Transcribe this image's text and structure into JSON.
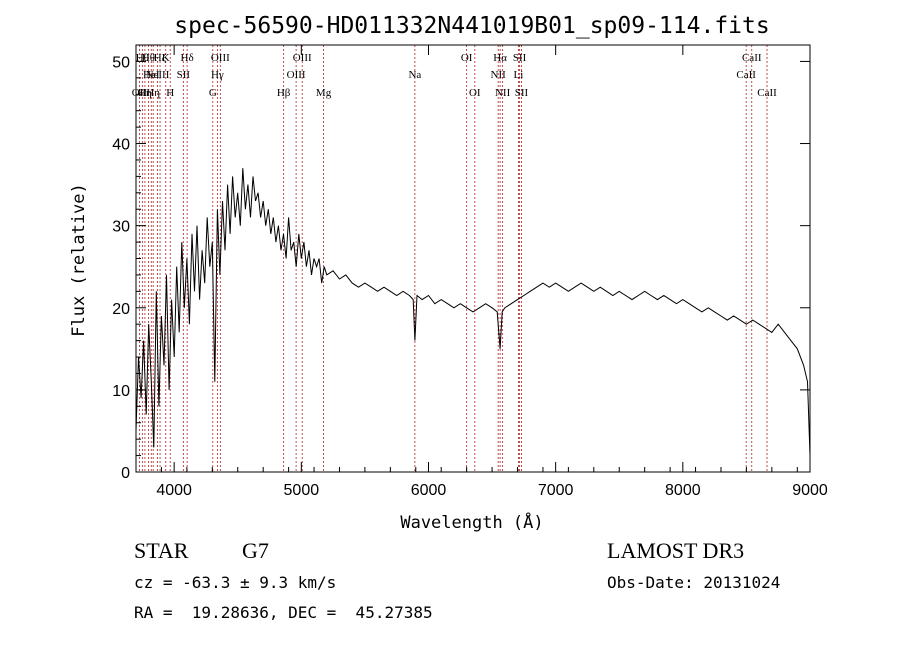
{
  "colors": {
    "axis": "#000000",
    "spectrum": "#000000",
    "line_marker": "#b22222"
  },
  "chart_data": {
    "type": "line",
    "title": "spec-56590-HD011332N441019B01_sp09-114.fits",
    "xlabel": "Wavelength (Å)",
    "ylabel": "Flux (relative)",
    "xlim": [
      3700,
      9000
    ],
    "ylim": [
      0,
      52
    ],
    "xticks": [
      "4000",
      "5000",
      "6000",
      "7000",
      "8000",
      "9000"
    ],
    "yticks": [
      "0",
      "10",
      "20",
      "30",
      "40",
      "50"
    ],
    "grid": false,
    "series": [
      {
        "x": [
          3700,
          3720,
          3740,
          3760,
          3780,
          3800,
          3820,
          3840,
          3860,
          3880,
          3900,
          3920,
          3940,
          3960,
          3980,
          4000,
          4020,
          4040,
          4060,
          4080,
          4100,
          4120,
          4140,
          4160,
          4180,
          4200,
          4220,
          4240,
          4260,
          4280,
          4300,
          4320,
          4340,
          4360,
          4380,
          4400,
          4420,
          4440,
          4460,
          4480,
          4500,
          4520,
          4540,
          4560,
          4580,
          4600,
          4620,
          4640,
          4660,
          4680,
          4700,
          4720,
          4740,
          4760,
          4780,
          4800,
          4820,
          4840,
          4860,
          4880,
          4900,
          4920,
          4940,
          4960,
          4980,
          5000,
          5020,
          5040,
          5060,
          5080,
          5100,
          5120,
          5140,
          5160,
          5180,
          5200,
          5250,
          5300,
          5350,
          5400,
          5450,
          5500,
          5550,
          5600,
          5650,
          5700,
          5750,
          5800,
          5850,
          5880,
          5893,
          5910,
          5950,
          6000,
          6050,
          6100,
          6150,
          6200,
          6250,
          6300,
          6350,
          6400,
          6450,
          6500,
          6540,
          6563,
          6580,
          6600,
          6650,
          6700,
          6750,
          6800,
          6850,
          6900,
          6950,
          7000,
          7050,
          7100,
          7150,
          7200,
          7250,
          7300,
          7350,
          7400,
          7450,
          7500,
          7550,
          7600,
          7650,
          7700,
          7750,
          7800,
          7850,
          7900,
          7950,
          8000,
          8050,
          8100,
          8150,
          8200,
          8250,
          8300,
          8350,
          8400,
          8450,
          8500,
          8550,
          8600,
          8650,
          8700,
          8750,
          8800,
          8850,
          8900,
          8950,
          8980,
          9000
        ],
        "y": [
          5,
          14,
          9,
          16,
          7,
          18,
          11,
          3,
          22,
          8,
          19,
          13,
          24,
          10,
          21,
          14,
          25,
          17,
          28,
          20,
          26,
          18,
          29,
          22,
          30,
          21,
          27,
          23,
          31,
          25,
          28,
          11,
          32,
          24,
          33,
          27,
          35,
          29,
          36,
          31,
          34,
          30,
          37,
          32,
          35,
          31,
          36,
          33,
          34,
          31,
          33,
          30,
          32,
          29,
          31,
          28,
          30,
          27,
          29,
          26,
          31,
          27,
          28,
          25,
          29,
          26,
          28,
          25,
          27,
          24,
          26,
          25,
          26,
          23,
          25,
          24,
          24.5,
          23.5,
          24,
          23,
          22.5,
          23,
          22.5,
          22,
          22.5,
          22,
          21.5,
          22,
          21.5,
          21,
          16,
          21.5,
          21,
          21.5,
          20.5,
          21,
          20.5,
          20,
          20.5,
          20,
          19.5,
          20,
          20.5,
          20,
          19.5,
          15,
          19.5,
          20,
          20.5,
          21,
          21.5,
          22,
          22.5,
          23,
          22.5,
          23,
          22.5,
          22,
          22.5,
          23,
          22.5,
          22,
          22.5,
          22,
          21.5,
          22,
          21.5,
          21,
          21.5,
          22,
          21.5,
          21,
          21.5,
          21,
          20.5,
          21,
          20.5,
          20,
          19.5,
          20,
          19.5,
          19,
          18.5,
          19,
          18.5,
          18,
          18.5,
          18,
          17.5,
          17,
          18,
          17,
          16,
          15,
          13,
          11,
          2
        ]
      }
    ],
    "line_markers": [
      {
        "wave": 3727,
        "label": "OII",
        "row": 2
      },
      {
        "wave": 3750,
        "label": "Hθ",
        "row": 0
      },
      {
        "wave": 3770,
        "label": "Hη",
        "row": 2
      },
      {
        "wave": 3798,
        "label": "Hθ",
        "row": 0
      },
      {
        "wave": 3820,
        "label": "HeI",
        "row": 1
      },
      {
        "wave": 3835,
        "label": "Hη",
        "row": 2
      },
      {
        "wave": 3869,
        "label": "NeIII",
        "row": 1
      },
      {
        "wave": 3889,
        "label": "Hζ",
        "row": 0
      },
      {
        "wave": 3934,
        "label": "K",
        "row": 0
      },
      {
        "wave": 3969,
        "label": "H",
        "row": 2
      },
      {
        "wave": 4072,
        "label": "SII",
        "row": 1
      },
      {
        "wave": 4102,
        "label": "Hδ",
        "row": 0
      },
      {
        "wave": 4304,
        "label": "G",
        "row": 2
      },
      {
        "wave": 4340,
        "label": "Hγ",
        "row": 1
      },
      {
        "wave": 4363,
        "label": "OIII",
        "row": 0
      },
      {
        "wave": 4861,
        "label": "Hβ",
        "row": 2
      },
      {
        "wave": 4959,
        "label": "OIII",
        "row": 1
      },
      {
        "wave": 5007,
        "label": "OIII",
        "row": 0
      },
      {
        "wave": 5175,
        "label": "Mg",
        "row": 2
      },
      {
        "wave": 5893,
        "label": "Na",
        "row": 1
      },
      {
        "wave": 6300,
        "label": "OI",
        "row": 0
      },
      {
        "wave": 6364,
        "label": "OI",
        "row": 2
      },
      {
        "wave": 6548,
        "label": "NII",
        "row": 1
      },
      {
        "wave": 6563,
        "label": "Hα",
        "row": 0
      },
      {
        "wave": 6583,
        "label": "NII",
        "row": 2
      },
      {
        "wave": 6707,
        "label": "Li",
        "row": 1
      },
      {
        "wave": 6716,
        "label": "SII",
        "row": 0
      },
      {
        "wave": 6731,
        "label": "SII",
        "row": 2
      },
      {
        "wave": 8498,
        "label": "CaII",
        "row": 1
      },
      {
        "wave": 8542,
        "label": "CaII",
        "row": 0
      },
      {
        "wave": 8662,
        "label": "CaII",
        "row": 2
      }
    ]
  },
  "info": {
    "obj_class": "STAR",
    "obj_subclass": "G7",
    "survey": "LAMOST DR3",
    "redshift": "cz = -63.3 ± 9.3 km/s",
    "obs_date": "Obs-Date: 20131024",
    "coords": "RA =  19.28636, DEC =  45.27385"
  }
}
